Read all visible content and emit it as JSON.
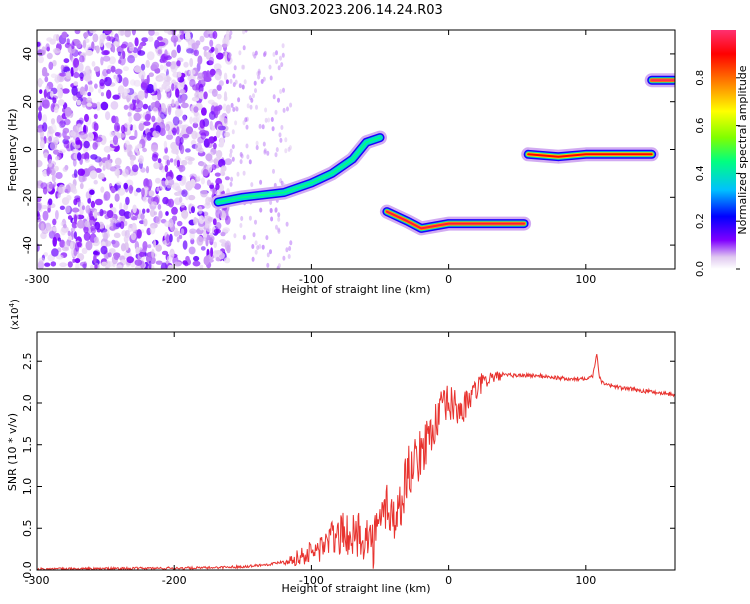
{
  "title": "GN03.2023.206.14.24.R03",
  "chart_data": [
    {
      "type": "heatmap",
      "title": "GN03.2023.206.14.24.R03",
      "xlabel": "Height of straight line (km)",
      "ylabel": "Frequency (Hz)",
      "xlim": [
        -300,
        165
      ],
      "ylim": [
        -50,
        50
      ],
      "x_ticks": [
        -300,
        -200,
        -100,
        0,
        100
      ],
      "y_ticks": [
        -40,
        -20,
        0,
        20,
        40
      ],
      "x_tick_labels": [
        "-300",
        "-200",
        "-100",
        "0",
        "100"
      ],
      "y_tick_labels": [
        "-40",
        "-20",
        "0",
        "20",
        "40"
      ],
      "noise_region_x": [
        -300,
        -160
      ],
      "features": [
        {
          "segment": "rising branch",
          "points": [
            [
              -168,
              -22
            ],
            [
              -150,
              -20
            ],
            [
              -120,
              -18
            ],
            [
              -100,
              -14
            ],
            [
              -85,
              -10
            ],
            [
              -70,
              -4
            ],
            [
              -60,
              3
            ],
            [
              -50,
              5
            ]
          ],
          "amplitude": 0.45
        },
        {
          "segment": "lower tone",
          "points": [
            [
              -45,
              -26
            ],
            [
              -30,
              -30
            ],
            [
              -20,
              -33
            ],
            [
              0,
              -31
            ],
            [
              30,
              -31
            ],
            [
              55,
              -31
            ]
          ],
          "amplitude": 0.95
        },
        {
          "segment": "middle tone",
          "points": [
            [
              58,
              -2
            ],
            [
              80,
              -3
            ],
            [
              100,
              -2
            ],
            [
              120,
              -2
            ],
            [
              148,
              -2
            ]
          ],
          "amplitude": 0.9
        },
        {
          "segment": "upper tone",
          "points": [
            [
              148,
              29
            ],
            [
              164,
              29
            ]
          ],
          "amplitude": 0.98
        }
      ],
      "colorbar": {
        "label": "Normalized spectral amplitude",
        "range": [
          0,
          1
        ],
        "ticks": [
          0.0,
          0.2,
          0.4,
          0.6,
          0.8
        ],
        "tick_labels": [
          "0.0",
          "0.2",
          "0.4",
          "0.6",
          "0.8"
        ],
        "colors": [
          "#ffffff",
          "#e0c8f0",
          "#8000ff",
          "#0000ff",
          "#00c0ff",
          "#00ff80",
          "#80ff00",
          "#ffff00",
          "#ff8000",
          "#ff0000",
          "#ff3070"
        ]
      }
    },
    {
      "type": "line",
      "xlabel": "Height of straight line (km)",
      "ylabel": "SNR (10 * v/v)",
      "y_multiplier": "(x10",
      "y_multiplier_exp": "4",
      "y_multiplier_close": ")",
      "xlim": [
        -300,
        165
      ],
      "ylim": [
        0,
        28500
      ],
      "x_ticks": [
        -300,
        -200,
        -100,
        0,
        100
      ],
      "y_ticks": [
        0,
        5000,
        10000,
        15000,
        20000,
        25000
      ],
      "x_tick_labels": [
        "-300",
        "-200",
        "-100",
        "0",
        "100"
      ],
      "y_tick_labels": [
        "0.0",
        "0.5",
        "1.0",
        "1.5",
        "2.0",
        "2.5"
      ],
      "series": [
        {
          "color": "#e8332f",
          "x": [
            -300,
            -260,
            -220,
            -180,
            -150,
            -130,
            -115,
            -105,
            -95,
            -90,
            -85,
            -80,
            -75,
            -70,
            -65,
            -60,
            -55,
            -50,
            -45,
            -40,
            -35,
            -30,
            -25,
            -20,
            -15,
            -10,
            -5,
            0,
            5,
            10,
            15,
            20,
            25,
            30,
            40,
            50,
            60,
            70,
            80,
            90,
            100,
            105,
            108,
            110,
            112,
            115,
            125,
            140,
            155,
            165
          ],
          "y": [
            100,
            150,
            200,
            250,
            400,
            700,
            1200,
            1800,
            2400,
            3200,
            3800,
            4000,
            4600,
            3800,
            4400,
            4000,
            3200,
            5500,
            8000,
            6000,
            7500,
            12000,
            12500,
            14000,
            16000,
            17500,
            19000,
            20000,
            19500,
            19000,
            20500,
            21500,
            22500,
            23000,
            23300,
            23300,
            23300,
            23200,
            23000,
            22800,
            23000,
            23200,
            26000,
            23000,
            22500,
            22300,
            21800,
            21500,
            21200,
            21000
          ]
        }
      ]
    }
  ]
}
